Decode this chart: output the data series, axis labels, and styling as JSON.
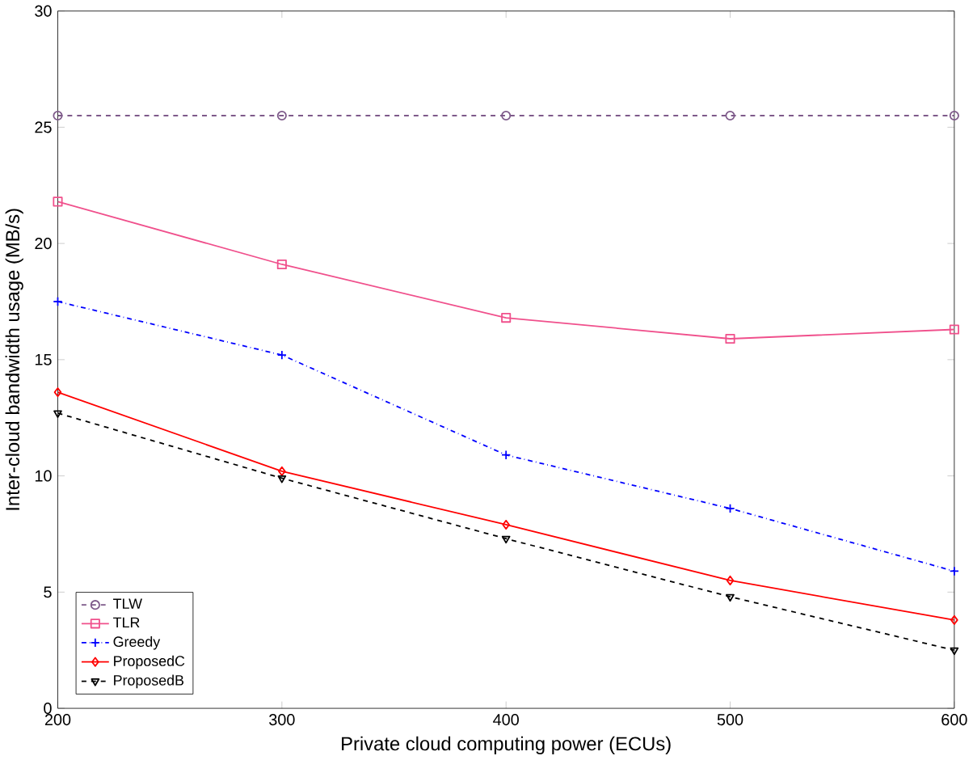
{
  "chart_data": {
    "type": "line",
    "xlabel": "Private cloud computing power (ECUs)",
    "ylabel": "Inter-cloud bandwidth usage (MB/s)",
    "x": [
      200,
      300,
      400,
      500,
      600
    ],
    "series": [
      {
        "name": "TLW",
        "color": "#7e5a8a",
        "marker": "circle",
        "line_style": "dashed",
        "values": [
          25.5,
          25.5,
          25.5,
          25.5,
          25.5
        ]
      },
      {
        "name": "TLR",
        "color": "#f0508c",
        "marker": "square",
        "line_style": "solid",
        "values": [
          21.8,
          19.1,
          16.8,
          15.9,
          16.3
        ]
      },
      {
        "name": "Greedy",
        "color": "#0000ff",
        "marker": "cross",
        "line_style": "dashdot",
        "values": [
          17.5,
          15.2,
          10.9,
          8.6,
          5.9
        ]
      },
      {
        "name": "ProposedC",
        "color": "#ff0000",
        "marker": "diamond",
        "line_style": "solid",
        "values": [
          13.6,
          10.2,
          7.9,
          5.5,
          3.8
        ]
      },
      {
        "name": "ProposedB",
        "color": "#000000",
        "marker": "triangle",
        "line_style": "dashed",
        "values": [
          12.7,
          9.9,
          7.3,
          4.8,
          2.5
        ]
      }
    ],
    "xlim": [
      200,
      600
    ],
    "ylim": [
      0,
      30
    ],
    "xticks": [
      200,
      300,
      400,
      500,
      600
    ],
    "yticks": [
      0,
      5,
      10,
      15,
      20,
      25,
      30
    ],
    "grid": false,
    "legend": "bottom left"
  }
}
